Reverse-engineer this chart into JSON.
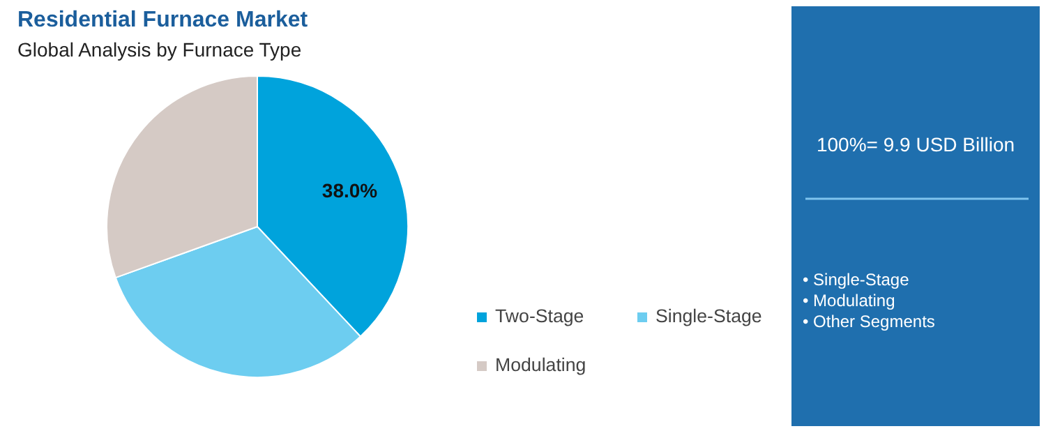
{
  "chart_data": {
    "type": "pie",
    "title": "Residential Furnace Market",
    "subtitle": "Global Analysis by Furnace Type",
    "categories": [
      "Two-Stage",
      "Single-Stage",
      "Modulating"
    ],
    "values": [
      38.0,
      31.5,
      30.5
    ],
    "colors": [
      "#00a3dc",
      "#6dcdf0",
      "#d5cac5"
    ],
    "value_labels": [
      "38.0%",
      null,
      null
    ],
    "legend": "right",
    "annotations": [
      "100%= 9.9 USD Billion",
      "• Single-Stage",
      "• Modulating",
      "• Other Segments"
    ]
  }
}
